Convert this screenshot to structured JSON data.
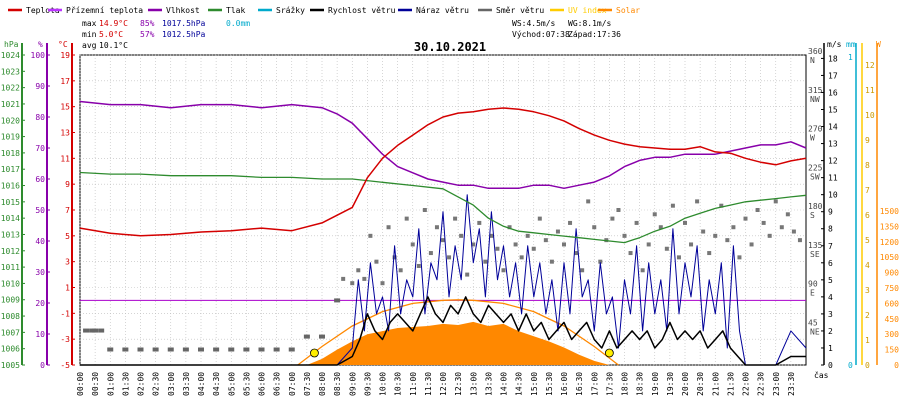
{
  "chart_data": {
    "type": "line",
    "title": "30.10.2021",
    "legend": {
      "placement": "top",
      "items": [
        {
          "name": "Teplota",
          "color": "#d40000"
        },
        {
          "name": "Přízemní teplota",
          "color": "#bb33ff"
        },
        {
          "name": "Vlhkost",
          "color": "#8800aa"
        },
        {
          "name": "Tlak",
          "color": "#2e8b2e"
        },
        {
          "name": "Srážky",
          "color": "#00aacc"
        },
        {
          "name": "Rychlost větru",
          "color": "#000000"
        },
        {
          "name": "Náraz větru",
          "color": "#000099"
        },
        {
          "name": "Směr větru",
          "color": "#666666"
        },
        {
          "name": "UV index",
          "color": "#ffcc00"
        },
        {
          "name": "Solar",
          "color": "#ff8800"
        }
      ]
    },
    "stats": {
      "max": {
        "label": "max",
        "temp": "14.9°C",
        "hum": "85%",
        "press": "1017.5hPa",
        "rain": "0.0mm"
      },
      "min": {
        "label": "min",
        "temp": "5.0°C",
        "hum": "57%",
        "press": "1012.5hPa"
      },
      "avg": {
        "label": "avg",
        "temp": "10.1°C"
      },
      "ws": "WS:4.5m/s",
      "wg": "WG:8.1m/s",
      "sunrise": "Východ:07:38",
      "sunset": "Západ:17:36"
    },
    "axes": {
      "left": [
        {
          "unit": "hPa",
          "color": "#2e8b2e",
          "ticks": [
            "1005",
            "1006",
            "1007",
            "1008",
            "1009",
            "1010",
            "1011",
            "1012",
            "1013",
            "1014",
            "1015",
            "1016",
            "1017",
            "1018",
            "1019",
            "1020",
            "1021",
            "1022",
            "1023",
            "1024"
          ]
        },
        {
          "unit": "%",
          "color": "#8800aa",
          "ticks": [
            "0",
            "10",
            "20",
            "30",
            "40",
            "50",
            "60",
            "70",
            "80",
            "90",
            "100"
          ]
        },
        {
          "unit": "°C",
          "color": "#d40000",
          "ticks": [
            "-5",
            "-3",
            "-1",
            "1",
            "3",
            "5",
            "7",
            "9",
            "11",
            "13",
            "15",
            "17",
            "19"
          ]
        }
      ],
      "right": [
        {
          "unit": "m/s",
          "color": "#000000",
          "ticks": [
            "0",
            "1",
            "2",
            "3",
            "4",
            "5",
            "6",
            "7",
            "8",
            "9",
            "10",
            "11",
            "12",
            "13",
            "14",
            "15",
            "16",
            "17",
            "18"
          ]
        },
        {
          "unit": "°",
          "color": "#666666",
          "ticks": [
            "0",
            "45",
            "90",
            "135",
            "180",
            "225",
            "270",
            "315",
            "360"
          ],
          "dirs": [
            "",
            "NE",
            "E",
            "SE",
            "S",
            "SW",
            "W",
            "NW",
            "N"
          ]
        },
        {
          "unit": "mm",
          "color": "#00aacc",
          "ticks": [
            "0",
            "1"
          ]
        },
        {
          "unit": "UV",
          "color": "#ffcc00",
          "ticks": [
            "0",
            "1",
            "2",
            "3",
            "4",
            "5",
            "6",
            "7",
            "8",
            "9",
            "10",
            "11",
            "12"
          ]
        },
        {
          "unit": "W",
          "color": "#ff8800",
          "ticks": [
            "0",
            "150",
            "300",
            "450",
            "600",
            "750",
            "900",
            "1050",
            "1200",
            "1350",
            "1500"
          ]
        }
      ],
      "x_label": "čas",
      "x_ticks": [
        "00:00",
        "00:30",
        "01:00",
        "01:30",
        "02:00",
        "02:30",
        "03:00",
        "03:30",
        "04:00",
        "04:30",
        "05:00",
        "05:30",
        "06:00",
        "06:30",
        "07:00",
        "07:30",
        "08:00",
        "08:30",
        "09:00",
        "09:30",
        "10:00",
        "10:30",
        "11:00",
        "11:30",
        "12:00",
        "12:30",
        "13:00",
        "13:30",
        "14:00",
        "14:30",
        "15:00",
        "15:30",
        "16:00",
        "16:30",
        "17:00",
        "17:30",
        "18:00",
        "18:30",
        "19:00",
        "19:30",
        "20:00",
        "20:30",
        "21:00",
        "21:30",
        "22:00",
        "22:30",
        "23:00",
        "23:30"
      ]
    },
    "series": [
      {
        "name": "Teplota",
        "unit": "°C",
        "color": "#d40000",
        "x": [
          0,
          1,
          2,
          3,
          4,
          5,
          6,
          7,
          8,
          9,
          9.5,
          10,
          10.5,
          11,
          11.5,
          12,
          12.5,
          13,
          13.5,
          14,
          14.5,
          15,
          15.5,
          16,
          16.5,
          17,
          17.5,
          18,
          18.5,
          19,
          19.5,
          20,
          20.5,
          21,
          21.5,
          22,
          22.5,
          23,
          23.5,
          24
        ],
        "values": [
          5.6,
          5.2,
          5.0,
          5.1,
          5.3,
          5.4,
          5.6,
          5.4,
          6.0,
          7.2,
          9.5,
          11.0,
          12.0,
          12.8,
          13.6,
          14.2,
          14.5,
          14.6,
          14.8,
          14.9,
          14.8,
          14.6,
          14.3,
          13.9,
          13.3,
          12.8,
          12.4,
          12.1,
          11.9,
          11.8,
          11.7,
          11.7,
          11.9,
          11.5,
          11.4,
          11.0,
          10.7,
          10.5,
          10.8,
          11.0
        ]
      },
      {
        "name": "Vlhkost",
        "unit": "%",
        "color": "#8800aa",
        "x": [
          0,
          1,
          2,
          3,
          4,
          5,
          6,
          7,
          8,
          8.5,
          9,
          9.5,
          10,
          10.5,
          11,
          11.5,
          12,
          12.5,
          13,
          13.5,
          14,
          14.5,
          15,
          15.5,
          16,
          16.5,
          17,
          17.5,
          18,
          18.5,
          19,
          19.5,
          20,
          20.5,
          21,
          21.5,
          22,
          22.5,
          23,
          23.5,
          24
        ],
        "values": [
          85,
          84,
          84,
          83,
          84,
          84,
          83,
          84,
          83,
          81,
          78,
          73,
          68,
          64,
          62,
          60,
          59,
          58,
          58,
          57,
          57,
          57,
          58,
          58,
          57,
          58,
          59,
          61,
          64,
          66,
          67,
          67,
          68,
          68,
          68,
          69,
          70,
          71,
          71,
          72,
          70
        ]
      },
      {
        "name": "Tlak",
        "unit": "hPa",
        "color": "#2e8b2e",
        "x": [
          0,
          1,
          2,
          3,
          4,
          5,
          6,
          7,
          8,
          9,
          10,
          11,
          12,
          12.5,
          13,
          13.5,
          14,
          14.5,
          15,
          15.5,
          16,
          16.5,
          17,
          17.5,
          18,
          18.5,
          19,
          19.5,
          20,
          20.5,
          21,
          21.5,
          22,
          22.5,
          23,
          23.5,
          24
        ],
        "values": [
          1016.8,
          1016.7,
          1016.7,
          1016.6,
          1016.6,
          1016.6,
          1016.5,
          1016.5,
          1016.4,
          1016.4,
          1016.2,
          1016.0,
          1015.8,
          1015.3,
          1014.8,
          1014.0,
          1013.5,
          1013.2,
          1013.1,
          1013.0,
          1012.9,
          1012.8,
          1012.7,
          1012.6,
          1012.5,
          1012.8,
          1013.2,
          1013.5,
          1014.0,
          1014.3,
          1014.6,
          1014.8,
          1015.0,
          1015.1,
          1015.2,
          1015.3,
          1015.4
        ]
      },
      {
        "name": "Rychlost větru",
        "unit": "m/s",
        "color": "#000000",
        "x": [
          0,
          8.5,
          9,
          9.25,
          9.5,
          9.75,
          10,
          10.25,
          10.5,
          10.75,
          11,
          11.25,
          11.5,
          11.75,
          12,
          12.25,
          12.5,
          12.75,
          13,
          13.25,
          13.5,
          13.75,
          14,
          14.25,
          14.5,
          14.75,
          15,
          15.25,
          15.5,
          15.75,
          16,
          16.25,
          16.5,
          16.75,
          17,
          17.25,
          17.5,
          17.75,
          18,
          18.25,
          18.5,
          18.75,
          19,
          19.25,
          19.5,
          19.75,
          20,
          20.25,
          20.5,
          20.75,
          21,
          21.25,
          21.5,
          21.75,
          22,
          23,
          23.5,
          24
        ],
        "values": [
          0,
          0,
          0.5,
          1.5,
          3,
          2,
          1.5,
          2.5,
          3,
          2.5,
          2,
          3,
          4,
          3,
          2.5,
          3.5,
          3,
          4,
          3,
          2.5,
          3.5,
          3,
          2.5,
          3,
          2,
          3,
          2,
          2.5,
          1.5,
          2,
          2.5,
          1.5,
          2,
          2.5,
          1.5,
          1,
          2,
          1,
          1.5,
          2,
          1.5,
          2,
          1,
          1.5,
          2.5,
          1.5,
          2,
          1.5,
          2,
          1,
          1.5,
          2,
          1,
          0.5,
          0,
          0,
          0.5,
          0.5
        ]
      },
      {
        "name": "Náraz větru",
        "unit": "m/s",
        "color": "#000099",
        "x": [
          0,
          8.5,
          9,
          9.2,
          9.4,
          9.6,
          9.8,
          10,
          10.2,
          10.4,
          10.6,
          10.8,
          11,
          11.2,
          11.4,
          11.6,
          11.8,
          12,
          12.2,
          12.4,
          12.6,
          12.8,
          13,
          13.2,
          13.4,
          13.6,
          13.8,
          14,
          14.2,
          14.4,
          14.6,
          14.8,
          15,
          15.2,
          15.4,
          15.6,
          15.8,
          16,
          16.2,
          16.4,
          16.6,
          16.8,
          17,
          17.2,
          17.4,
          17.6,
          17.8,
          18,
          18.2,
          18.4,
          18.6,
          18.8,
          19,
          19.2,
          19.4,
          19.6,
          19.8,
          20,
          20.2,
          20.4,
          20.6,
          20.8,
          21,
          21.2,
          21.4,
          21.6,
          21.8,
          22,
          23,
          23.5,
          24
        ],
        "values": [
          0,
          0,
          1,
          5,
          2,
          6,
          3,
          4,
          2,
          7,
          3,
          5,
          4,
          8,
          3,
          6,
          5,
          9,
          4,
          7,
          5,
          10,
          6,
          8,
          4,
          9,
          5,
          7,
          4,
          6,
          3,
          7,
          4,
          6,
          3,
          5,
          2,
          6,
          3,
          8,
          4,
          5,
          2,
          6,
          3,
          4,
          1,
          5,
          3,
          7,
          2,
          6,
          3,
          5,
          2,
          8,
          3,
          6,
          4,
          7,
          2,
          5,
          3,
          6,
          1,
          7,
          2,
          0,
          0,
          2,
          1
        ]
      },
      {
        "name": "Solar",
        "unit": "W",
        "color": "#ff8800",
        "x": [
          7.5,
          8,
          8.5,
          9,
          9.5,
          10,
          10.5,
          11,
          11.5,
          12,
          12.5,
          13,
          13.5,
          14,
          14.5,
          15,
          15.5,
          16,
          16.5,
          17,
          17.5
        ],
        "values": [
          0,
          60,
          150,
          230,
          300,
          330,
          360,
          370,
          380,
          400,
          390,
          420,
          380,
          400,
          330,
          280,
          230,
          170,
          100,
          40,
          0
        ]
      },
      {
        "name": "Solar max",
        "unit": "W",
        "color": "#ff8800",
        "x": [
          7.2,
          8,
          9,
          10,
          11,
          12,
          12.5,
          13,
          14,
          15,
          16,
          17,
          17.8
        ],
        "values": [
          0,
          180,
          380,
          520,
          600,
          630,
          635,
          630,
          600,
          520,
          380,
          180,
          0
        ]
      }
    ],
    "wind_direction": {
      "unit": "°",
      "x": [
        0.2,
        0.4,
        0.5,
        0.7,
        1,
        1.5,
        2,
        2.5,
        3,
        3.5,
        4,
        4.5,
        5,
        5.5,
        6,
        6.5,
        7,
        7.5,
        8,
        8.5,
        8.7,
        9,
        9.2,
        9.4,
        9.6,
        9.8,
        10,
        10.2,
        10.4,
        10.6,
        10.8,
        11,
        11.2,
        11.4,
        11.6,
        11.8,
        12,
        12.2,
        12.4,
        12.6,
        12.8,
        13,
        13.2,
        13.4,
        13.6,
        13.8,
        14,
        14.2,
        14.4,
        14.6,
        14.8,
        15,
        15.2,
        15.4,
        15.6,
        15.8,
        16,
        16.2,
        16.4,
        16.6,
        16.8,
        17,
        17.2,
        17.4,
        17.6,
        17.8,
        18,
        18.2,
        18.4,
        18.6,
        18.8,
        19,
        19.2,
        19.4,
        19.6,
        19.8,
        20,
        20.2,
        20.4,
        20.6,
        20.8,
        21,
        21.2,
        21.4,
        21.6,
        21.8,
        22,
        22.2,
        22.4,
        22.6,
        22.8,
        23,
        23.2,
        23.4,
        23.6,
        23.8
      ],
      "values": [
        40,
        40,
        40,
        40,
        18,
        18,
        18,
        18,
        18,
        18,
        18,
        18,
        18,
        18,
        18,
        18,
        18,
        33,
        33,
        75,
        100,
        95,
        110,
        100,
        150,
        120,
        95,
        160,
        125,
        110,
        170,
        140,
        115,
        180,
        130,
        160,
        145,
        125,
        170,
        150,
        105,
        140,
        165,
        120,
        150,
        135,
        110,
        160,
        140,
        125,
        150,
        135,
        170,
        145,
        120,
        155,
        140,
        165,
        130,
        110,
        190,
        160,
        120,
        145,
        170,
        180,
        150,
        130,
        165,
        110,
        140,
        175,
        160,
        135,
        185,
        125,
        165,
        140,
        190,
        155,
        130,
        150,
        185,
        145,
        160,
        125,
        170,
        140,
        180,
        165,
        150,
        190,
        160,
        175,
        155,
        145
      ]
    },
    "uv_markers": {
      "color": "#ffcc00",
      "x": [
        7.75,
        17.5
      ],
      "values": [
        0.4,
        0.4
      ]
    },
    "rain": {
      "unit": "mm",
      "color": "#00aacc",
      "values": [
        0.0
      ]
    }
  }
}
